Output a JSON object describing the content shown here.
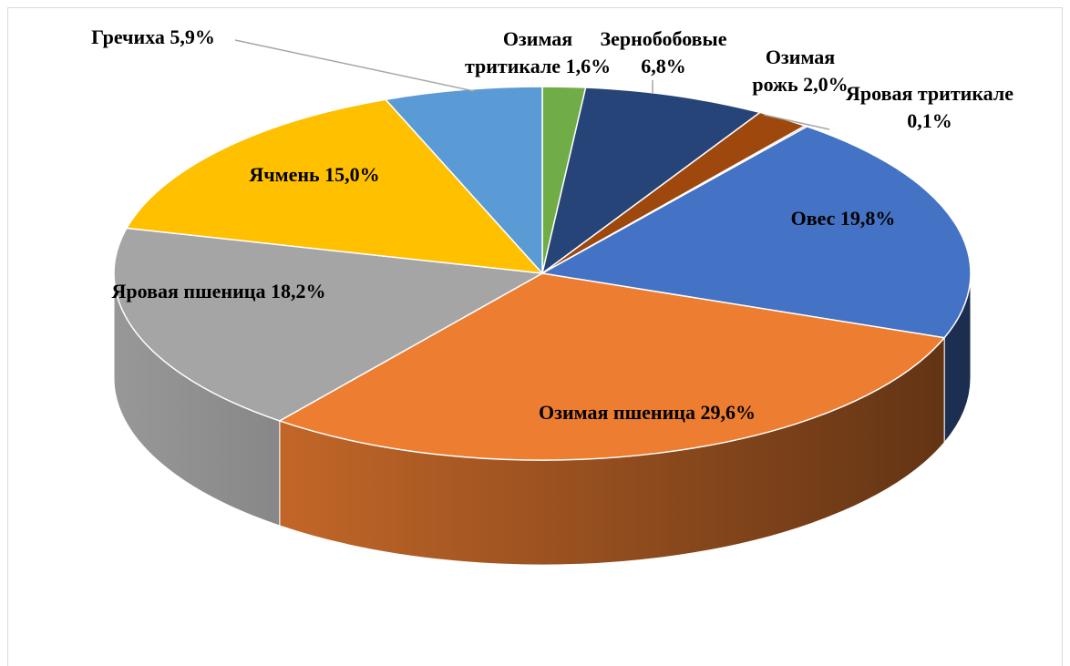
{
  "chart_data": {
    "type": "pie3d",
    "categories": [
      "Озимая тритикале",
      "Зернобобовые",
      "Озимая рожь",
      "Яровая тритикале",
      "Овес",
      "Озимая пшеница",
      "Яровая пшеница",
      "Ячмень",
      "Гречиха"
    ],
    "values": [
      1.6,
      6.8,
      2.0,
      0.1,
      19.8,
      29.6,
      18.2,
      15.0,
      5.9
    ],
    "value_labels": [
      "1,6%",
      "6,8%",
      "2,0%",
      "0,1%",
      "19,8%",
      "29,6%",
      "18,2%",
      "15,0%",
      "5,9%"
    ],
    "colors": [
      "#70ad47",
      "#264478",
      "#9e480e",
      "#636363",
      "#4472c4",
      "#ed7d31",
      "#a5a5a5",
      "#ffc000",
      "#5b9bd5"
    ]
  }
}
